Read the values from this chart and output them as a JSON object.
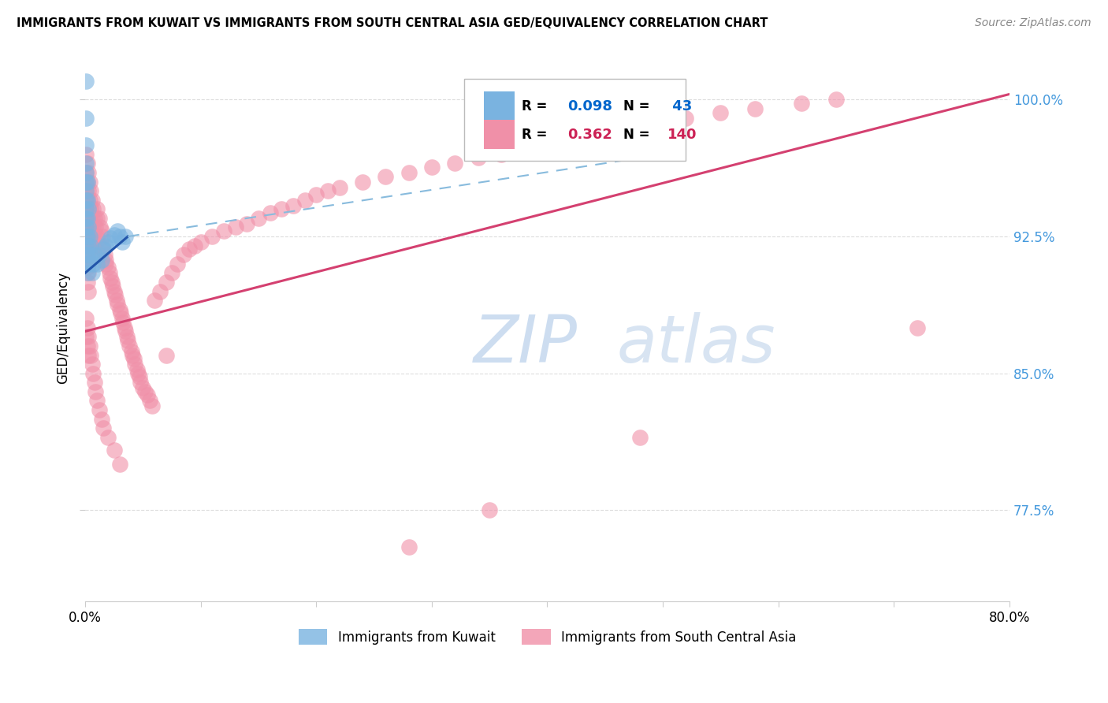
{
  "title": "IMMIGRANTS FROM KUWAIT VS IMMIGRANTS FROM SOUTH CENTRAL ASIA GED/EQUIVALENCY CORRELATION CHART",
  "source": "Source: ZipAtlas.com",
  "ylabel": "GED/Equivalency",
  "watermark_zip": "ZIP",
  "watermark_atlas": "atlas",
  "legend_kuwait_R": "0.098",
  "legend_kuwait_N": "43",
  "legend_asia_R": "0.362",
  "legend_asia_N": "140",
  "blue_color": "#7ab3e0",
  "pink_color": "#f090a8",
  "blue_line_color": "#2255aa",
  "pink_line_color": "#d44070",
  "blue_dash_color": "#88bbdd",
  "background_color": "#ffffff",
  "grid_color": "#dddddd",
  "ytick_color": "#4499dd",
  "xlim": [
    0.0,
    0.8
  ],
  "ylim": [
    0.725,
    1.025
  ],
  "yticks": [
    0.775,
    0.85,
    0.925,
    1.0
  ],
  "ytick_labels": [
    "77.5%",
    "85.0%",
    "92.5%",
    "100.0%"
  ]
}
